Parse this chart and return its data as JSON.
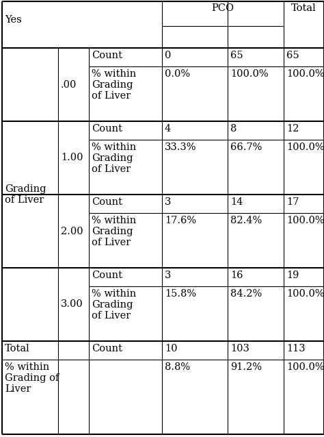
{
  "background_color": "#ffffff",
  "font_size": 10.5,
  "font_family": "DejaVu Serif",
  "sub_labels": [
    ".00",
    "1.00",
    "2.00",
    "3.00"
  ],
  "count_vals": [
    [
      "0",
      "65",
      "65"
    ],
    [
      "4",
      "8",
      "12"
    ],
    [
      "3",
      "14",
      "17"
    ],
    [
      "3",
      "16",
      "19"
    ]
  ],
  "pct_vals": [
    [
      "0.0%",
      "100.0%",
      "100.0%"
    ],
    [
      "33.3%",
      "66.7%",
      "100.0%"
    ],
    [
      "17.6%",
      "82.4%",
      "100.0%"
    ],
    [
      "15.8%",
      "84.2%",
      "100.0%"
    ]
  ],
  "total_counts": [
    "10",
    "103",
    "113"
  ],
  "total_pcts": [
    "8.8%",
    "91.2%",
    "100.0%"
  ],
  "pct_label": "% within\nGrading\nof Liver",
  "grading_label": "Grading\nof Liver",
  "total_pct_label": "% within\nGrading of\nLiver"
}
